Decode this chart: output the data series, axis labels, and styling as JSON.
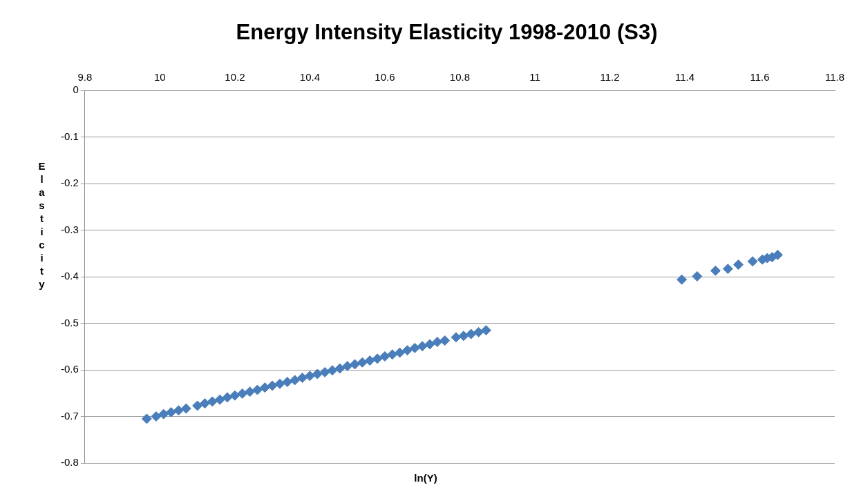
{
  "chart_data": {
    "type": "scatter",
    "title": "Energy Intensity Elasticity 1998-2010 (S3)",
    "xlabel": "ln(Y)",
    "ylabel": "Elasticity",
    "xlim": [
      9.8,
      11.8
    ],
    "xticks": [
      9.8,
      10,
      10.2,
      10.4,
      10.6,
      10.8,
      11,
      11.2,
      11.4,
      11.6,
      11.8
    ],
    "ylim": [
      -0.8,
      0
    ],
    "yticks": [
      -0.8,
      -0.7,
      -0.6,
      -0.5,
      -0.4,
      -0.3,
      -0.2,
      -0.1,
      0
    ],
    "grid": "y",
    "marker": "diamond",
    "legend": false,
    "series": [
      {
        "color": "#4a7ebb",
        "x": [
          9.965,
          9.99,
          10.01,
          10.03,
          10.05,
          10.07,
          10.1,
          10.12,
          10.14,
          10.16,
          10.18,
          10.2,
          10.22,
          10.24,
          10.26,
          10.28,
          10.3,
          10.32,
          10.34,
          10.36,
          10.38,
          10.4,
          10.42,
          10.44,
          10.46,
          10.48,
          10.5,
          10.52,
          10.54,
          10.56,
          10.58,
          10.6,
          10.62,
          10.64,
          10.66,
          10.68,
          10.7,
          10.72,
          10.74,
          10.76,
          10.79,
          10.81,
          10.83,
          10.85,
          10.87,
          11.392,
          11.433,
          11.482,
          11.515,
          11.543,
          11.581,
          11.607,
          11.62,
          11.633,
          11.648
        ],
        "values": [
          -0.705,
          -0.7,
          -0.695,
          -0.691,
          -0.687,
          -0.683,
          -0.677,
          -0.672,
          -0.668,
          -0.664,
          -0.659,
          -0.655,
          -0.651,
          -0.647,
          -0.643,
          -0.638,
          -0.634,
          -0.63,
          -0.626,
          -0.622,
          -0.617,
          -0.613,
          -0.609,
          -0.605,
          -0.601,
          -0.597,
          -0.592,
          -0.588,
          -0.584,
          -0.58,
          -0.576,
          -0.571,
          -0.567,
          -0.563,
          -0.558,
          -0.553,
          -0.549,
          -0.545,
          -0.54,
          -0.537,
          -0.53,
          -0.527,
          -0.523,
          -0.519,
          -0.515,
          -0.406,
          -0.399,
          -0.387,
          -0.383,
          -0.374,
          -0.367,
          -0.363,
          -0.36,
          -0.358,
          -0.353
        ]
      }
    ]
  }
}
